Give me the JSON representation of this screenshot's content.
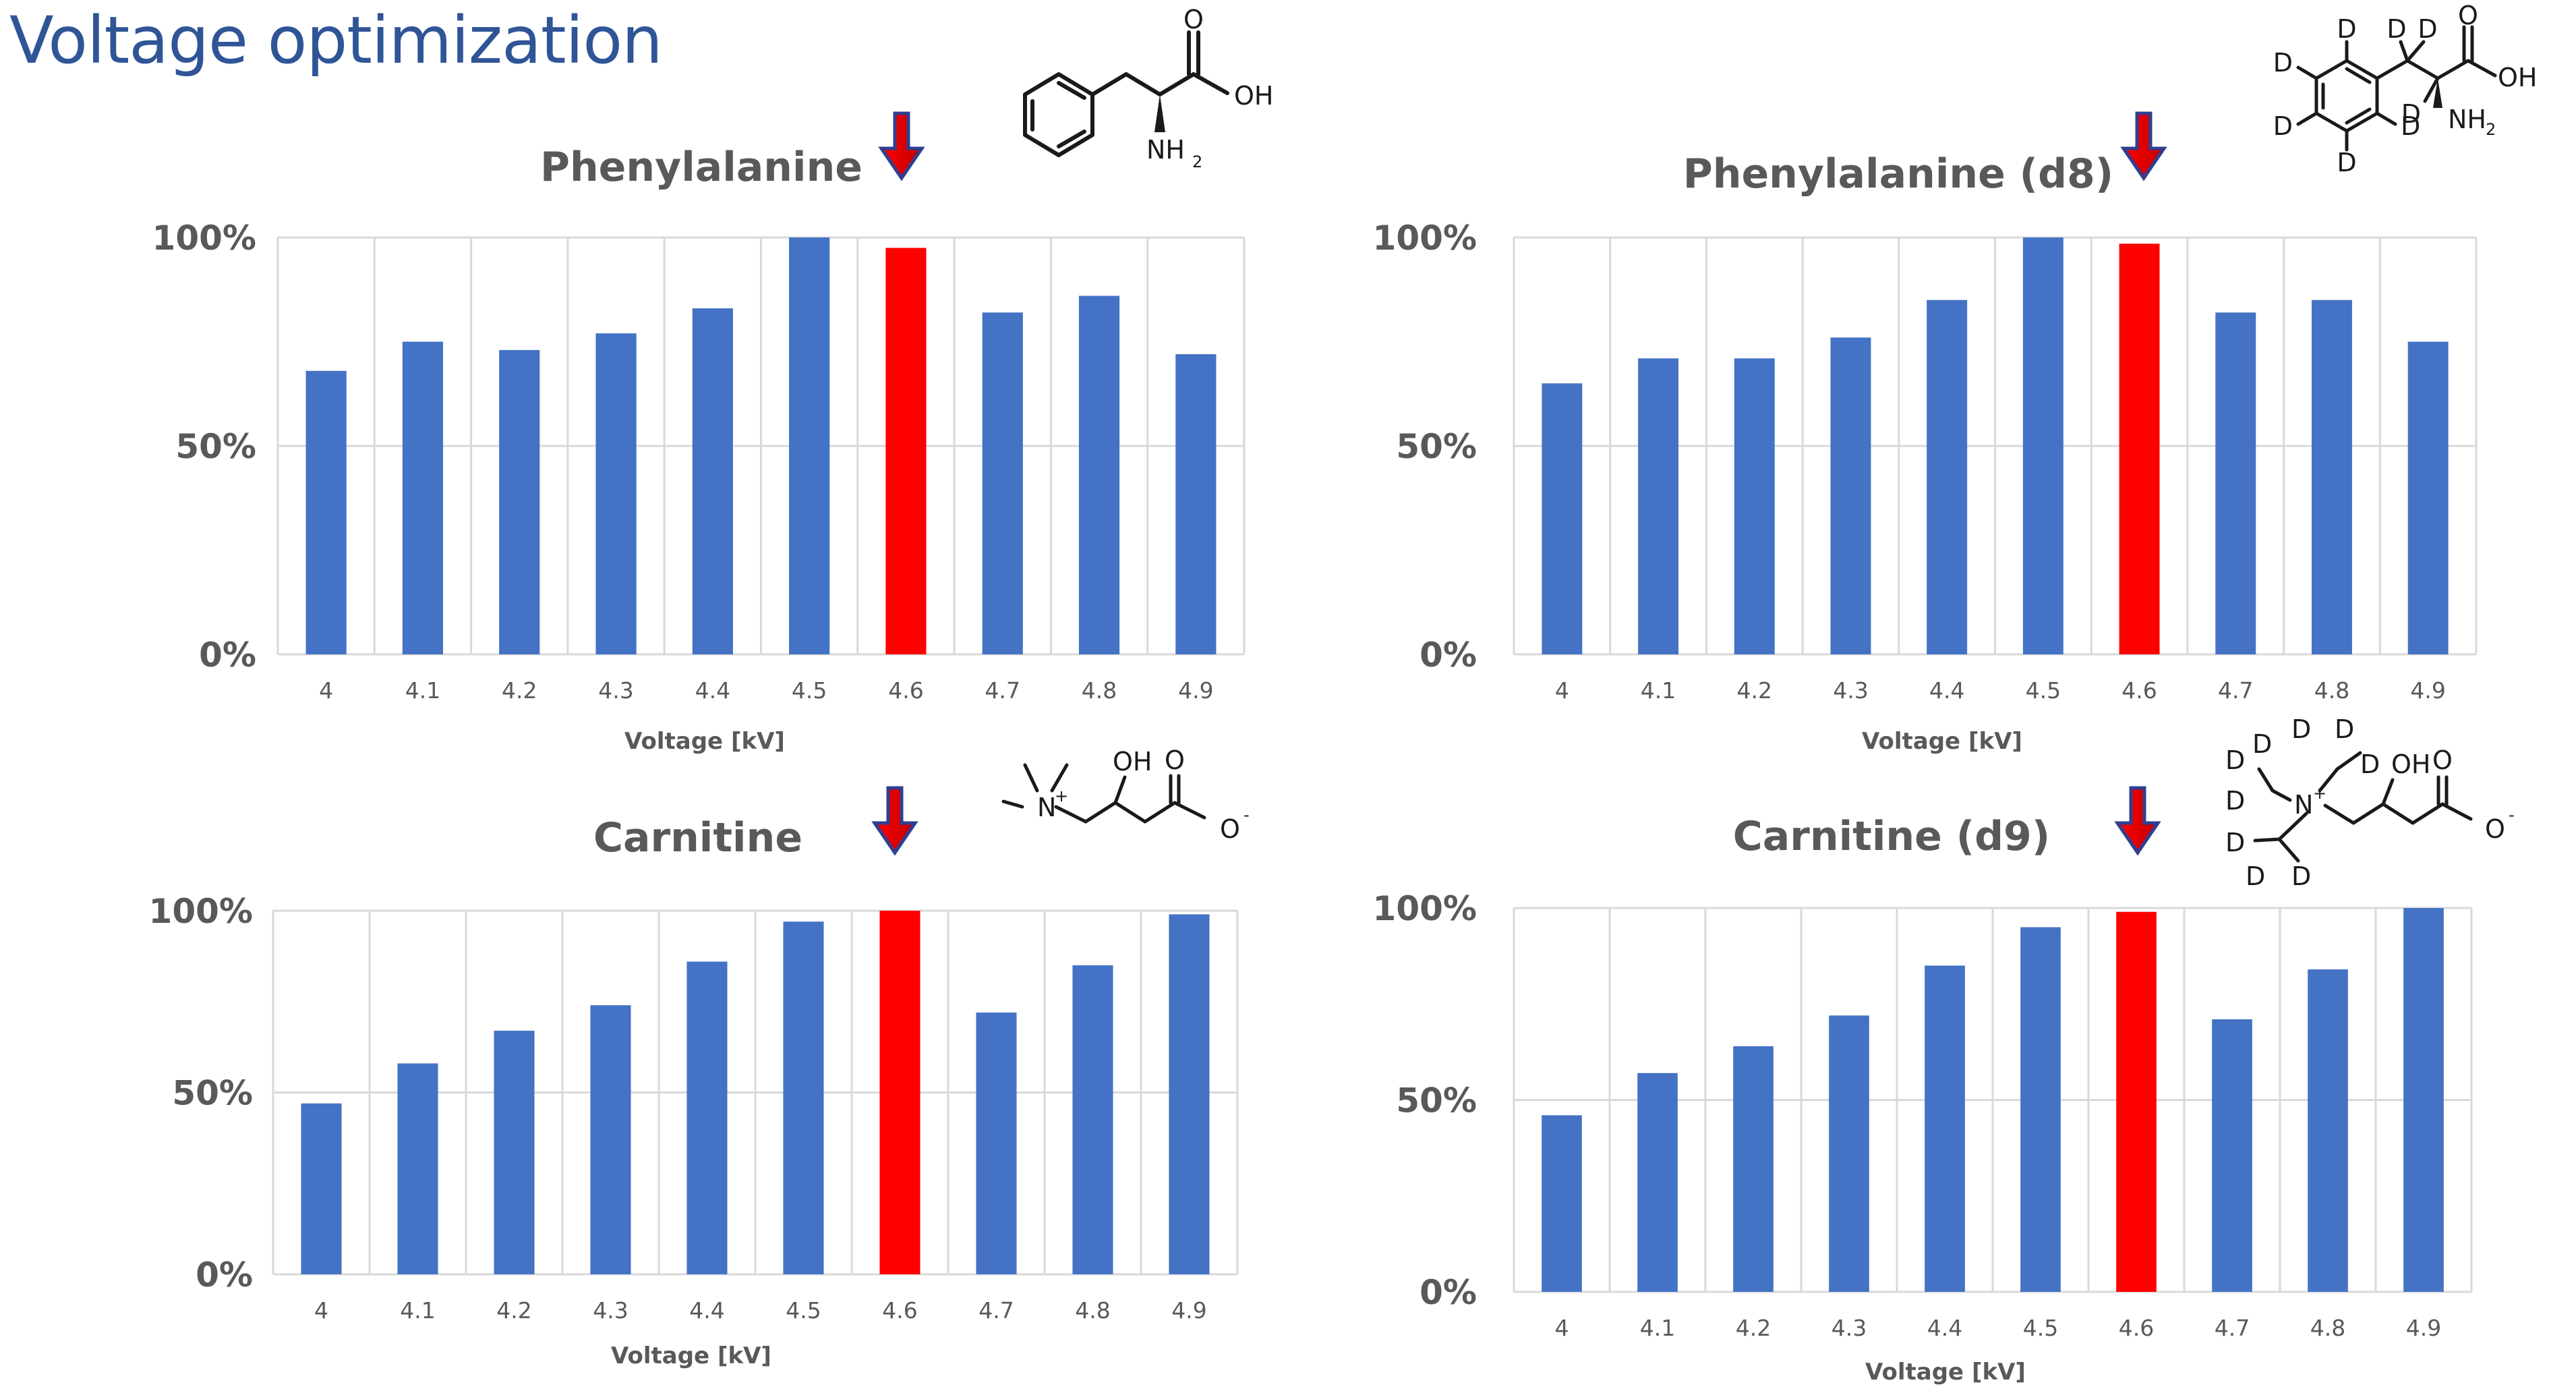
{
  "page": {
    "title": "Voltage optimization"
  },
  "colors": {
    "bar": "#4472c4",
    "highlight": "#ff0000",
    "grid": "#d9d9d9",
    "text": "#595959",
    "title": "#2f5597"
  },
  "molecules": {
    "phe": {
      "atoms": [
        "O",
        "OH",
        "NH",
        "2"
      ]
    },
    "phe_d8": {
      "atoms": [
        "O",
        "OH",
        "NH",
        "2",
        "D"
      ]
    },
    "car": {
      "atoms": [
        "N",
        "+",
        "OH",
        "O",
        "O",
        "-"
      ]
    },
    "car_d9": {
      "atoms": [
        "N",
        "+",
        "OH",
        "O",
        "O",
        "-",
        "D"
      ]
    }
  },
  "chart_data": [
    {
      "type": "bar",
      "title": "Phenylalanine",
      "categories": [
        "4",
        "4.1",
        "4.2",
        "4.3",
        "4.4",
        "4.5",
        "4.6",
        "4.7",
        "4.8",
        "4.9"
      ],
      "values": [
        68,
        75,
        73,
        77,
        83,
        100,
        97.5,
        82,
        86,
        72
      ],
      "highlight_index": 6,
      "xlabel": "Voltage [kV]",
      "ylabel": "",
      "ylim": [
        0,
        100
      ],
      "yticks": [
        "0%",
        "50%",
        "100%"
      ],
      "grid": true
    },
    {
      "type": "bar",
      "title": "Phenylalanine (d8)",
      "categories": [
        "4",
        "4.1",
        "4.2",
        "4.3",
        "4.4",
        "4.5",
        "4.6",
        "4.7",
        "4.8",
        "4.9"
      ],
      "values": [
        65,
        71,
        71,
        76,
        85,
        100,
        98.5,
        82,
        85,
        75
      ],
      "highlight_index": 6,
      "xlabel": "Voltage [kV]",
      "ylabel": "",
      "ylim": [
        0,
        100
      ],
      "yticks": [
        "0%",
        "50%",
        "100%"
      ],
      "grid": true
    },
    {
      "type": "bar",
      "title": "Carnitine",
      "categories": [
        "4",
        "4.1",
        "4.2",
        "4.3",
        "4.4",
        "4.5",
        "4.6",
        "4.7",
        "4.8",
        "4.9"
      ],
      "values": [
        47,
        58,
        67,
        74,
        86,
        97,
        100,
        72,
        85,
        99
      ],
      "highlight_index": 6,
      "xlabel": "Voltage [kV]",
      "ylabel": "",
      "ylim": [
        0,
        100
      ],
      "yticks": [
        "0%",
        "50%",
        "100%"
      ],
      "grid": true
    },
    {
      "type": "bar",
      "title": "Carnitine (d9)",
      "categories": [
        "4",
        "4.1",
        "4.2",
        "4.3",
        "4.4",
        "4.5",
        "4.6",
        "4.7",
        "4.8",
        "4.9"
      ],
      "values": [
        46,
        57,
        64,
        72,
        85,
        95,
        99,
        71,
        84,
        100
      ],
      "highlight_index": 6,
      "xlabel": "Voltage [kV]",
      "ylabel": "",
      "ylim": [
        0,
        100
      ],
      "yticks": [
        "0%",
        "50%",
        "100%"
      ],
      "grid": true
    }
  ]
}
